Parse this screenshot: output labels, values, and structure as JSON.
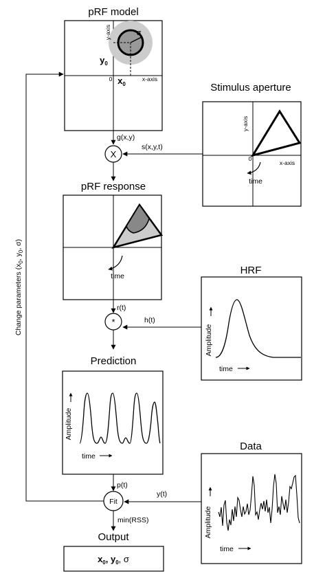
{
  "titles": {
    "prf_model": "pRF model",
    "stimulus": "Stimulus aperture",
    "prf_response": "pRF response",
    "hrf": "HRF",
    "prediction": "Prediction",
    "data": "Data",
    "output": "Output"
  },
  "axes": {
    "x_axis": "x-axis",
    "y_axis": "y-axis",
    "origin": "0",
    "x0": "x",
    "y0": "y",
    "subscript_zero": "0",
    "sigma": "σ"
  },
  "signals": {
    "g": "g(x,y)",
    "s": "s(x,y,t)",
    "r": "r(t)",
    "h": "h(t)",
    "p": "p(t)",
    "y": "y(t)",
    "min_rss": "min(RSS)"
  },
  "operators": {
    "multiply": "X",
    "convolve": "*",
    "fit": "Fit"
  },
  "plot_labels": {
    "time": "time",
    "amplitude": "Amplitude",
    "arrow": "⟶"
  },
  "loop_label": {
    "prefix": "Change parameters (x",
    "sub1": "0",
    "mid": ", y",
    "sub2": "0",
    "suffix": ", σ)"
  },
  "output_box": {
    "x": "x",
    "sub1": "0",
    "sep": ", ",
    "y": "y",
    "sub2": "0",
    "end": ", σ"
  }
}
